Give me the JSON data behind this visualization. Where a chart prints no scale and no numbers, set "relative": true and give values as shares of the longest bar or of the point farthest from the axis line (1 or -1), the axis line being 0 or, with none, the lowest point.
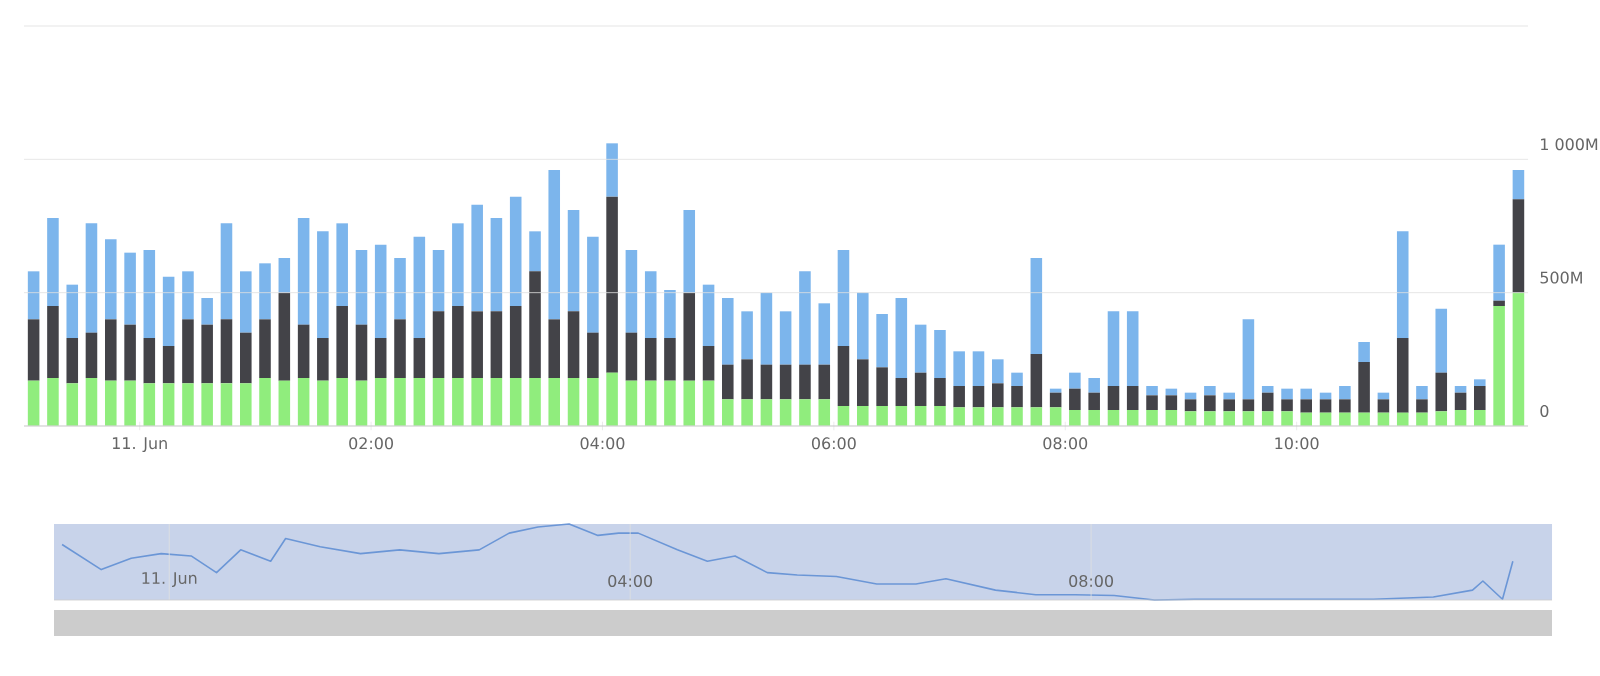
{
  "chart_data": [
    {
      "type": "bar",
      "stacked": true,
      "grid": "y",
      "xlim": [
        -1,
        12
      ],
      "ylim": [
        0,
        1500
      ],
      "xticks": [
        {
          "value": 0,
          "label": "11. Jun"
        },
        {
          "value": 2,
          "label": "02:00"
        },
        {
          "value": 4,
          "label": "04:00"
        },
        {
          "value": 6,
          "label": "06:00"
        },
        {
          "value": 8,
          "label": "08:00"
        },
        {
          "value": 10,
          "label": "10:00"
        }
      ],
      "yticks": [
        0,
        {
          "value": 500,
          "label": "500M"
        },
        {
          "value": 1000,
          "label": "1 000M"
        },
        {
          "value": 1500,
          "label": null
        }
      ],
      "x": [
        -0.917,
        -0.75,
        -0.583,
        -0.417,
        -0.25,
        -0.083,
        0.083,
        0.25,
        0.417,
        0.583,
        0.75,
        0.917,
        1.083,
        1.25,
        1.417,
        1.583,
        1.75,
        1.917,
        2.083,
        2.25,
        2.417,
        2.583,
        2.75,
        2.917,
        3.083,
        3.25,
        3.417,
        3.583,
        3.75,
        3.917,
        4.083,
        4.25,
        4.417,
        4.583,
        4.75,
        4.917,
        5.083,
        5.25,
        5.417,
        5.583,
        5.75,
        5.917,
        6.083,
        6.25,
        6.417,
        6.583,
        6.75,
        6.917,
        7.083,
        7.25,
        7.417,
        7.583,
        7.75,
        7.917,
        8.083,
        8.25,
        8.417,
        8.583,
        8.75,
        8.917,
        9.083,
        9.25,
        9.417,
        9.583,
        9.75,
        9.917,
        10.083,
        10.25,
        10.417,
        10.583,
        10.75,
        10.917,
        11.083,
        11.25,
        11.417,
        11.583,
        11.75,
        11.917
      ],
      "series": [
        {
          "color": "#90ed7d",
          "values": [
            170,
            180,
            160,
            180,
            170,
            170,
            160,
            160,
            160,
            160,
            160,
            160,
            180,
            170,
            180,
            170,
            180,
            170,
            180,
            180,
            180,
            180,
            180,
            180,
            180,
            180,
            180,
            180,
            180,
            180,
            200,
            170,
            170,
            170,
            170,
            170,
            100,
            100,
            100,
            100,
            100,
            100,
            75,
            75,
            75,
            75,
            75,
            75,
            70,
            70,
            70,
            70,
            70,
            70,
            60,
            60,
            60,
            60,
            60,
            60,
            55,
            55,
            55,
            55,
            55,
            55,
            50,
            50,
            50,
            50,
            50,
            50,
            50,
            55,
            60,
            60,
            450,
            500
          ]
        },
        {
          "color": "#434348",
          "values": [
            230,
            270,
            170,
            170,
            230,
            210,
            170,
            140,
            240,
            220,
            240,
            190,
            220,
            330,
            200,
            160,
            270,
            210,
            150,
            220,
            150,
            250,
            270,
            250,
            250,
            270,
            400,
            220,
            250,
            170,
            660,
            180,
            160,
            160,
            330,
            130,
            130,
            150,
            130,
            130,
            130,
            130,
            225,
            175,
            145,
            105,
            125,
            105,
            80,
            80,
            90,
            80,
            200,
            55,
            80,
            65,
            90,
            90,
            55,
            55,
            45,
            60,
            45,
            45,
            70,
            45,
            50,
            50,
            50,
            190,
            50,
            280,
            50,
            145,
            65,
            90,
            20,
            350
          ]
        },
        {
          "color": "#7cb5ec",
          "values": [
            180,
            330,
            200,
            410,
            300,
            270,
            330,
            260,
            180,
            100,
            360,
            230,
            210,
            130,
            400,
            400,
            310,
            280,
            350,
            230,
            380,
            230,
            310,
            400,
            350,
            410,
            150,
            560,
            380,
            360,
            200,
            310,
            250,
            180,
            310,
            230,
            250,
            180,
            270,
            200,
            350,
            230,
            360,
            250,
            200,
            300,
            180,
            180,
            130,
            130,
            90,
            50,
            360,
            15,
            60,
            55,
            280,
            280,
            35,
            25,
            25,
            35,
            25,
            300,
            25,
            40,
            40,
            25,
            50,
            75,
            25,
            400,
            50,
            240,
            25,
            25,
            210,
            110
          ]
        }
      ]
    },
    {
      "type": "line",
      "relative": true,
      "grid": "x",
      "tick_labels": "x",
      "xlim": [
        -1,
        12
      ],
      "xticks": [
        {
          "value": 0,
          "label": "11. Jun"
        },
        {
          "value": 4,
          "label": "04:00"
        },
        {
          "value": 8,
          "label": "08:00"
        }
      ],
      "bands": [
        {
          "axis": "x",
          "from": -1,
          "to": 12,
          "color": "#c8d3ea"
        }
      ],
      "series": [
        {
          "color": "#6b96d6",
          "x": [
            -0.93,
            -0.59,
            -0.33,
            -0.07,
            0.19,
            0.41,
            0.62,
            0.88,
            1.01,
            1.31,
            1.66,
            2.0,
            2.34,
            2.69,
            2.95,
            3.2,
            3.47,
            3.72,
            3.9,
            4.07,
            4.41,
            4.67,
            4.91,
            5.19,
            5.45,
            5.79,
            6.14,
            6.48,
            6.74,
            7.17,
            7.52,
            7.86,
            8.2,
            8.55,
            8.9,
            9.41,
            9.93,
            10.45,
            10.97,
            11.31,
            11.4,
            11.57,
            11.66
          ],
          "values": [
            0.73,
            0.4,
            0.55,
            0.61,
            0.58,
            0.36,
            0.66,
            0.51,
            0.81,
            0.7,
            0.61,
            0.66,
            0.61,
            0.66,
            0.88,
            0.96,
            1,
            0.85,
            0.88,
            0.88,
            0.66,
            0.51,
            0.58,
            0.36,
            0.33,
            0.31,
            0.21,
            0.21,
            0.28,
            0.13,
            0.07,
            0.07,
            0.06,
            0,
            0.01,
            0.01,
            0.01,
            0.01,
            0.04,
            0.13,
            0.25,
            0.01,
            0.51
          ]
        }
      ]
    }
  ]
}
